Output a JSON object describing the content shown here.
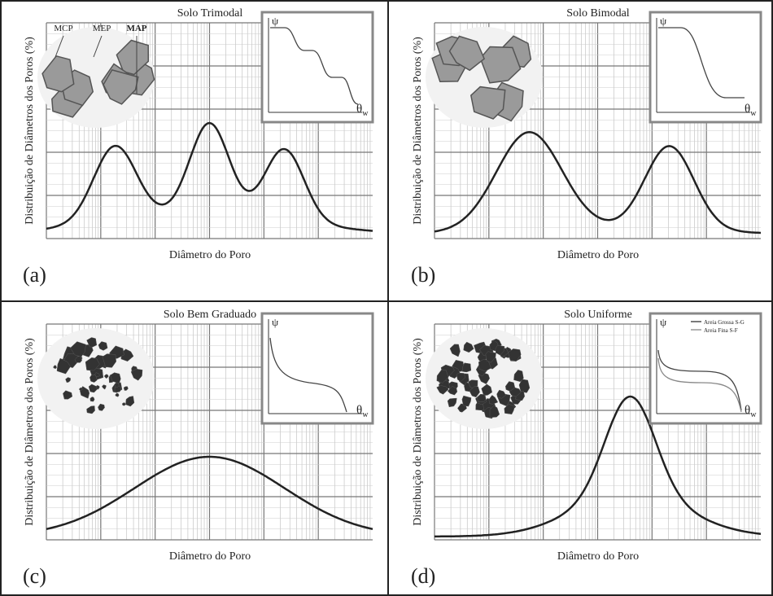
{
  "panels": [
    {
      "letter": "(a)",
      "title": "Solo Trimodal",
      "y_label": "Distribuição de Diâmetros dos Poros (%)",
      "x_label": "Diâmetro do Poro",
      "inset": {
        "y_symbol": "ψ",
        "x_symbol": "θ",
        "x_subscript": "w"
      },
      "particle_labels": [
        "MCP",
        "MEP",
        "MAP"
      ]
    },
    {
      "letter": "(b)",
      "title": "Solo Bimodal",
      "y_label": "Distribuição de Diâmetros dos Poros (%)",
      "x_label": "Diâmetro do Poro",
      "inset": {
        "y_symbol": "ψ",
        "x_symbol": "θ",
        "x_subscript": "w"
      }
    },
    {
      "letter": "(c)",
      "title": "Solo Bem Graduado",
      "y_label": "Distribuição de Diâmetros dos Poros (%)",
      "x_label": "Diâmetro do Poro",
      "inset": {
        "y_symbol": "ψ",
        "x_symbol": "θ",
        "x_subscript": "w"
      }
    },
    {
      "letter": "(d)",
      "title": "Solo Uniforme",
      "y_label": "Distribuição de Diâmetros dos Poros (%)",
      "x_label": "Diâmetro do Poro",
      "inset": {
        "y_symbol": "ψ",
        "x_symbol": "θ",
        "x_subscript": "w",
        "legend": [
          "Areia Grossa S-G",
          "Areia Fina S-F"
        ]
      }
    }
  ]
}
